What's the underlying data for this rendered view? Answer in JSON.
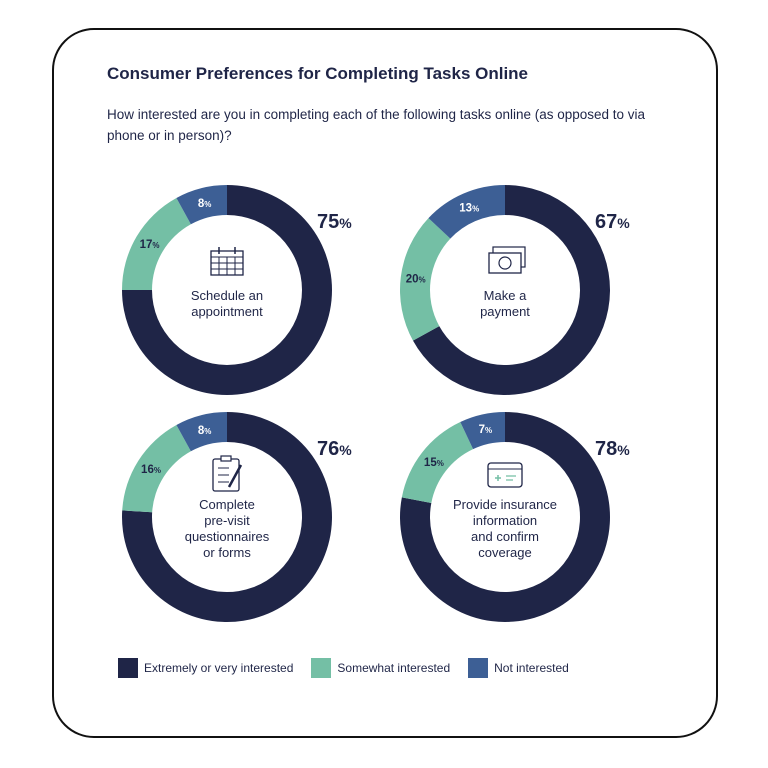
{
  "title": "Consumer Preferences for Completing Tasks Online",
  "subtitle": "How interested are you in completing each of the following tasks online (as opposed to via phone or in person)?",
  "colors": {
    "extremely": "#1f2547",
    "somewhat": "#74bfa5",
    "not": "#3d5f95"
  },
  "chart_data": {
    "type": "pie",
    "title": "Consumer Preferences for Completing Tasks Online",
    "legend": [
      "Extremely or very interested",
      "Somewhat interested",
      "Not interested"
    ],
    "legend_placement": "bottom",
    "charts": [
      {
        "label_lines": [
          "Schedule an",
          "appointment"
        ],
        "icon": "calendar-icon",
        "values": [
          75,
          17,
          8
        ]
      },
      {
        "label_lines": [
          "Make a",
          "payment"
        ],
        "icon": "money-icon",
        "values": [
          67,
          20,
          13
        ]
      },
      {
        "label_lines": [
          "Complete",
          "pre-visit",
          "questionnaires",
          "or forms"
        ],
        "icon": "clipboard-icon",
        "values": [
          76,
          16,
          8
        ]
      },
      {
        "label_lines": [
          "Provide insurance",
          "information",
          "and confirm",
          "coverage"
        ],
        "icon": "insurance-card-icon",
        "values": [
          78,
          15,
          7
        ]
      }
    ]
  }
}
